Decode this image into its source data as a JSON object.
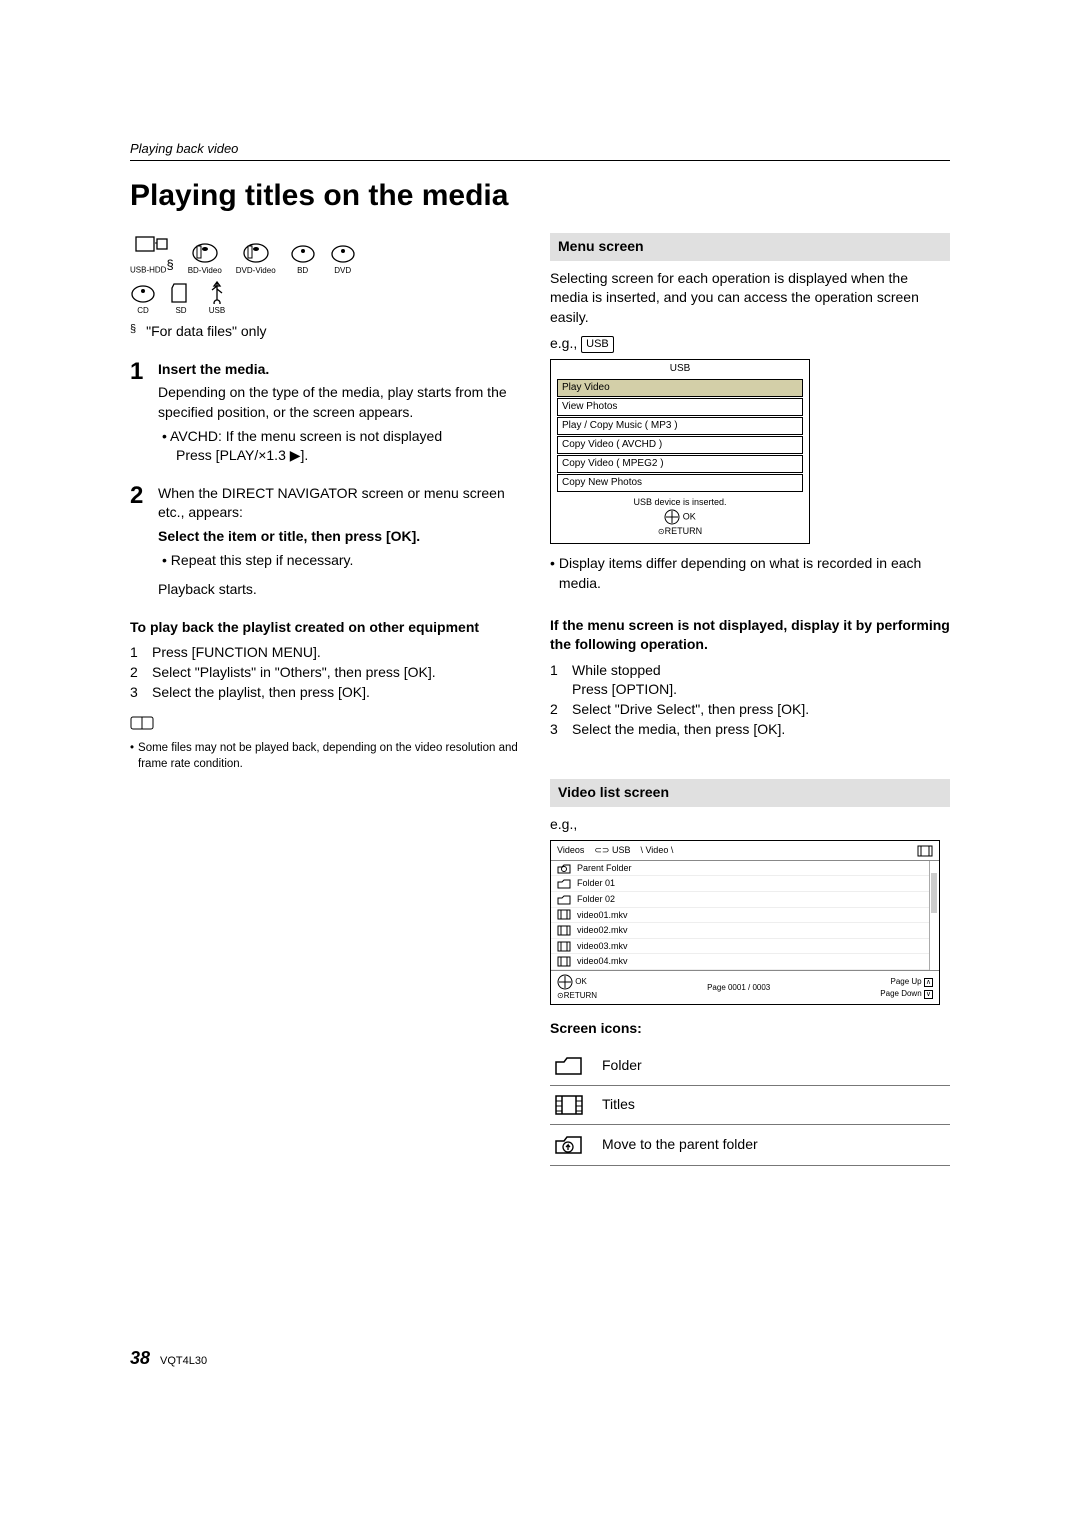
{
  "header": {
    "breadcrumb": "Playing back video"
  },
  "title": "Playing titles on the media",
  "media_icons": {
    "row1": [
      {
        "label": "USB-HDD",
        "asterisk": true
      },
      {
        "label": "BD-Video"
      },
      {
        "label": "DVD-Video"
      },
      {
        "label": "BD"
      },
      {
        "label": "DVD"
      }
    ],
    "row2": [
      {
        "label": "CD"
      },
      {
        "label": "SD"
      },
      {
        "label": "USB"
      }
    ],
    "footnote": "\"For data files\" only"
  },
  "steps": [
    {
      "num": "1",
      "title": "Insert the media.",
      "body": "Depending on the type of the media, play starts from the specified position, or the screen appears.",
      "bullets": [
        "AVCHD: If the menu screen is not displayed"
      ],
      "press": "Press [PLAY/×1.3 ▶]."
    },
    {
      "num": "2",
      "lead": "When the DIRECT NAVIGATOR screen or menu screen etc., appears:",
      "title": "Select the item or title, then press [OK].",
      "bullets": [
        "Repeat this step if necessary."
      ],
      "after": "Playback starts."
    }
  ],
  "playlist": {
    "title": "To play back the playlist created on other equipment",
    "items": [
      "Press [FUNCTION MENU].",
      "Select \"Playlists\" in \"Others\", then press [OK].",
      "Select the playlist, then press [OK]."
    ]
  },
  "note": "Some files may not be played back, depending on the video resolution and frame rate condition.",
  "menu_section": {
    "heading": "Menu screen",
    "intro": "Selecting screen for each operation is displayed when the media is inserted, and you can access the operation screen easily.",
    "eg_label": "e.g.,",
    "eg_btn": "USB",
    "table_title": "USB",
    "rows": [
      "Play Video",
      "View Photos",
      "Play / Copy Music ( MP3 )",
      "Copy Video ( AVCHD )",
      "Copy Video ( MPEG2 )",
      "Copy New Photos"
    ],
    "footer_msg": "USB device is inserted.",
    "footer_ok": "OK",
    "footer_return": "RETURN",
    "note": "Display items differ depending on what is recorded in each media.",
    "not_displayed_title": "If the menu screen is not displayed, display it by performing the following operation.",
    "not_displayed_steps": {
      "s1a": "While stopped",
      "s1b": "Press [OPTION].",
      "s2": "Select \"Drive Select\", then press [OK].",
      "s3": "Select the media, then press [OK]."
    }
  },
  "video_section": {
    "heading": "Video list screen",
    "eg": "e.g.,",
    "hdr_videos": "Videos",
    "hdr_usb": "USB",
    "hdr_path": "\\ Video \\",
    "rows": [
      {
        "type": "parent",
        "label": "Parent Folder"
      },
      {
        "type": "folder",
        "label": "Folder 01"
      },
      {
        "type": "folder",
        "label": "Folder 02"
      },
      {
        "type": "title",
        "label": "video01.mkv"
      },
      {
        "type": "title",
        "label": "video02.mkv"
      },
      {
        "type": "title",
        "label": "video03.mkv"
      },
      {
        "type": "title",
        "label": "video04.mkv"
      }
    ],
    "ftr_ok": "OK",
    "ftr_return": "RETURN",
    "ftr_page": "Page 0001 / 0003",
    "ftr_up": "Page Up",
    "ftr_down": "Page Down",
    "icons_title": "Screen icons:",
    "icon_folder": "Folder",
    "icon_titles": "Titles",
    "icon_parent": "Move to the parent folder"
  },
  "footer": {
    "page": "38",
    "code": "VQT4L30"
  }
}
